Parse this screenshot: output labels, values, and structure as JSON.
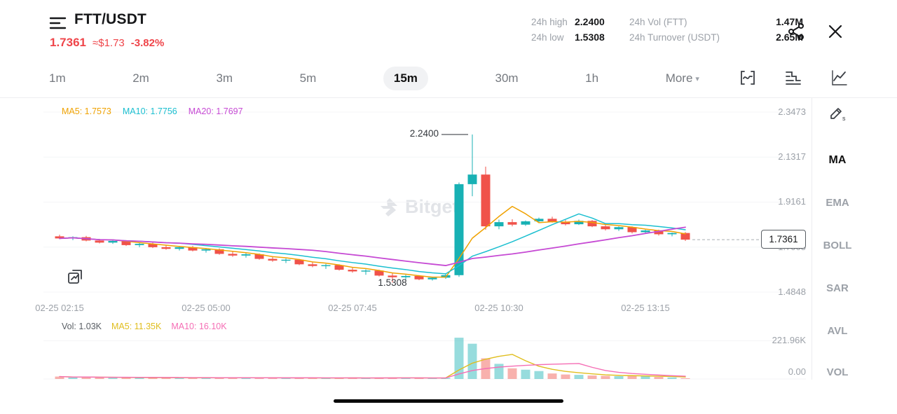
{
  "header": {
    "symbol": "FTT/USDT",
    "price": "1.7361",
    "approx": "≈$1.73",
    "change": "-3.82%",
    "stats": [
      {
        "label": "24h high",
        "value": "2.2400"
      },
      {
        "label": "24h Vol (FTT)",
        "value": "1.47M"
      },
      {
        "label": "24h low",
        "value": "1.5308"
      },
      {
        "label": "24h Turnover (USDT)",
        "value": "2.65M"
      }
    ]
  },
  "toolbar": {
    "timeframes": [
      "1m",
      "2m",
      "3m",
      "5m",
      "15m",
      "30m",
      "1h"
    ],
    "selected": "15m",
    "more": "More"
  },
  "icons": {
    "chevron_down": "▾"
  },
  "sidebar": {
    "items": [
      "MA",
      "EMA",
      "BOLL",
      "SAR",
      "AVL",
      "VOL"
    ],
    "active": "MA"
  },
  "watermark": "Bitget",
  "colors": {
    "up": "#18B1B4",
    "down": "#F0524A",
    "text_red": "#EF454A",
    "ma5": "#F0A202",
    "ma10": "#1BBFD0",
    "ma20": "#C64AD4",
    "vol_text": "#585D63",
    "vol_ma5": "#E0BE1E",
    "vol_ma10": "#F56EB5",
    "grid": "#F4F5F7",
    "axis_text": "#9CA1A8",
    "last_price_line": "#A9ADB2"
  },
  "chart_data": {
    "type": "candlestick",
    "symbol": "FTT/USDT",
    "interval": "15m",
    "date": "02-25",
    "ma_legend": [
      {
        "key": "ma5",
        "text": "MA5: 1.7573"
      },
      {
        "key": "ma10",
        "text": "MA10: 1.7756"
      },
      {
        "key": "ma20",
        "text": "MA20: 1.7697"
      }
    ],
    "vol_legend": [
      {
        "key": "vol_text",
        "text": "Vol: 1.03K"
      },
      {
        "key": "vol_ma5",
        "text": "MA5: 11.35K"
      },
      {
        "key": "vol_ma10",
        "text": "MA10: 16.10K"
      }
    ],
    "price_axis": [
      "2.3473",
      "2.1317",
      "1.9161",
      "1.7005",
      "1.4848"
    ],
    "vol_axis": [
      "221.96K",
      "0.00"
    ],
    "x_axis": [
      "02-25 02:15",
      "02-25 05:00",
      "02-25 07:45",
      "02-25 10:30",
      "02-25 13:15"
    ],
    "x_axis_indices": [
      0,
      11,
      22,
      33,
      44
    ],
    "annotations": {
      "high": "2.2400",
      "low": "1.5308",
      "high_index": 31,
      "low_index": 25
    },
    "last_price": "1.7361",
    "volume_unit": "K",
    "candles": [
      [
        "02:15",
        1.752,
        1.76,
        1.738,
        1.742,
        14
      ],
      [
        "02:30",
        1.742,
        1.752,
        1.734,
        1.748,
        9
      ],
      [
        "02:45",
        1.748,
        1.754,
        1.728,
        1.732,
        11
      ],
      [
        "03:00",
        1.732,
        1.74,
        1.718,
        1.722,
        8
      ],
      [
        "03:15",
        1.722,
        1.734,
        1.716,
        1.73,
        7
      ],
      [
        "03:30",
        1.73,
        1.734,
        1.706,
        1.71,
        10
      ],
      [
        "03:45",
        1.71,
        1.72,
        1.7,
        1.716,
        6
      ],
      [
        "04:00",
        1.716,
        1.722,
        1.696,
        1.7,
        9
      ],
      [
        "04:15",
        1.7,
        1.71,
        1.688,
        1.692,
        7
      ],
      [
        "04:30",
        1.692,
        1.704,
        1.684,
        1.7,
        5
      ],
      [
        "04:45",
        1.7,
        1.706,
        1.68,
        1.684,
        8
      ],
      [
        "05:00",
        1.684,
        1.696,
        1.674,
        1.69,
        6
      ],
      [
        "05:15",
        1.69,
        1.694,
        1.664,
        1.668,
        9
      ],
      [
        "05:30",
        1.668,
        1.678,
        1.654,
        1.66,
        7
      ],
      [
        "05:45",
        1.66,
        1.672,
        1.65,
        1.666,
        5
      ],
      [
        "06:00",
        1.666,
        1.67,
        1.64,
        1.644,
        8
      ],
      [
        "06:15",
        1.644,
        1.654,
        1.63,
        1.636,
        6
      ],
      [
        "06:30",
        1.636,
        1.646,
        1.624,
        1.64,
        5
      ],
      [
        "06:45",
        1.64,
        1.644,
        1.614,
        1.618,
        7
      ],
      [
        "07:00",
        1.618,
        1.628,
        1.604,
        1.61,
        6
      ],
      [
        "07:15",
        1.61,
        1.62,
        1.596,
        1.614,
        5
      ],
      [
        "07:30",
        1.614,
        1.618,
        1.588,
        1.592,
        7
      ],
      [
        "07:45",
        1.592,
        1.602,
        1.578,
        1.584,
        6
      ],
      [
        "08:00",
        1.584,
        1.594,
        1.568,
        1.588,
        5
      ],
      [
        "08:15",
        1.588,
        1.592,
        1.56,
        1.564,
        6
      ],
      [
        "08:30",
        1.564,
        1.576,
        1.5308,
        1.556,
        8
      ],
      [
        "08:45",
        1.556,
        1.568,
        1.544,
        1.562,
        7
      ],
      [
        "09:00",
        1.562,
        1.566,
        1.542,
        1.546,
        5
      ],
      [
        "09:15",
        1.546,
        1.558,
        1.54,
        1.554,
        4
      ],
      [
        "09:30",
        1.554,
        1.572,
        1.548,
        1.566,
        6
      ],
      [
        "09:45",
        1.566,
        2.01,
        1.558,
        2.002,
        240
      ],
      [
        "10:00",
        2.002,
        2.24,
        1.944,
        2.048,
        205
      ],
      [
        "10:15",
        2.048,
        2.086,
        1.784,
        1.8,
        120
      ],
      [
        "10:30",
        1.8,
        1.832,
        1.786,
        1.82,
        88
      ],
      [
        "10:45",
        1.82,
        1.834,
        1.8,
        1.808,
        62
      ],
      [
        "11:00",
        1.808,
        1.828,
        1.802,
        1.824,
        54
      ],
      [
        "11:15",
        1.824,
        1.842,
        1.816,
        1.836,
        46
      ],
      [
        "11:30",
        1.836,
        1.846,
        1.818,
        1.822,
        32
      ],
      [
        "11:45",
        1.822,
        1.83,
        1.804,
        1.81,
        26
      ],
      [
        "12:00",
        1.81,
        1.832,
        1.806,
        1.826,
        24
      ],
      [
        "12:15",
        1.826,
        1.83,
        1.796,
        1.8,
        20
      ],
      [
        "12:30",
        1.8,
        1.806,
        1.78,
        1.786,
        18
      ],
      [
        "12:45",
        1.786,
        1.8,
        1.778,
        1.796,
        16.27
      ],
      [
        "13:00",
        1.796,
        1.8,
        1.766,
        1.772,
        18.5
      ],
      [
        "13:15",
        1.772,
        1.784,
        1.764,
        1.78,
        16.2
      ],
      [
        "13:30",
        1.78,
        1.784,
        1.756,
        1.762,
        12
      ],
      [
        "13:45",
        1.762,
        1.77,
        1.752,
        1.768,
        9
      ],
      [
        "14:00",
        1.768,
        1.772,
        1.73,
        1.7361,
        1.03
      ]
    ]
  }
}
